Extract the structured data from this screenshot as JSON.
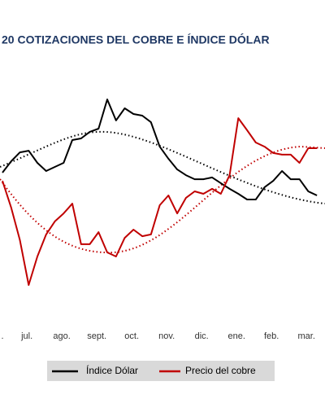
{
  "chart_data": {
    "type": "line",
    "title": "20 COTIZACIONES DEL COBRE E ÍNDICE DÓLAR",
    "x": [
      0.3,
      0.55,
      0.8,
      1.05,
      1.3,
      1.55,
      1.8,
      2.05,
      2.3,
      2.55,
      2.8,
      3.05,
      3.3,
      3.55,
      3.8,
      4.05,
      4.3,
      4.55,
      4.8,
      5.05,
      5.3,
      5.55,
      5.8,
      6.05,
      6.3,
      6.55,
      6.8,
      7.05,
      7.3,
      7.55,
      7.8,
      8.05,
      8.3,
      8.55,
      8.8,
      9.05,
      9.3
    ],
    "xlim": [
      0.23,
      9.53
    ],
    "xticks": [
      {
        "value": 0,
        "label": "."
      },
      {
        "value": 1,
        "label": "jul."
      },
      {
        "value": 2,
        "label": "ago."
      },
      {
        "value": 3,
        "label": "sept."
      },
      {
        "value": 4,
        "label": "oct."
      },
      {
        "value": 5,
        "label": "nov."
      },
      {
        "value": 6,
        "label": "dic."
      },
      {
        "value": 7,
        "label": "ene."
      },
      {
        "value": 8,
        "label": "feb."
      },
      {
        "value": 9,
        "label": "mar."
      }
    ],
    "ylim": [
      0,
      100
    ],
    "series": [
      {
        "name": "Índice Dólar",
        "color": "#000000",
        "values": [
          60,
          65,
          68.9,
          69.6,
          64.3,
          60.7,
          62.5,
          64.3,
          74.3,
          75,
          77.9,
          79.3,
          92.1,
          82.9,
          88.2,
          85.7,
          85,
          82.1,
          71.4,
          66.1,
          61.4,
          58.9,
          57.1,
          57.1,
          57.9,
          55.4,
          52.9,
          50.7,
          48.2,
          48.2,
          53.6,
          56.4,
          60.7,
          57.1,
          57.1,
          51.8,
          50
        ]
      },
      {
        "name": "Precio del cobre",
        "color": "#c00000",
        "values": [
          56.4,
          44.6,
          30.4,
          10.7,
          23.2,
          32.9,
          38.6,
          42.1,
          46.4,
          28.6,
          28.6,
          33.9,
          25,
          23.2,
          31.4,
          35,
          32.1,
          32.9,
          45.7,
          50,
          42.1,
          48.9,
          51.8,
          50.7,
          52.9,
          50.7,
          58.9,
          83.9,
          78.6,
          73.2,
          71.4,
          68.6,
          67.9,
          67.9,
          64.3,
          70.7,
          70.7
        ]
      }
    ]
  }
}
